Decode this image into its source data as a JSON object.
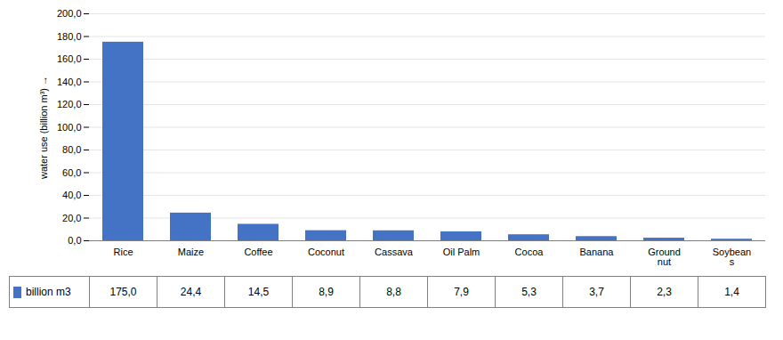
{
  "chart_data": {
    "type": "bar",
    "categories": [
      "Rice",
      "Maize",
      "Coffee",
      "Coconut",
      "Cassava",
      "Oil Palm",
      "Cocoa",
      "Banana",
      "Ground\nnut",
      "Soybean\ns"
    ],
    "series": [
      {
        "name": "billion m3",
        "color": "#4472C4",
        "values": [
          175.0,
          24.4,
          14.5,
          8.9,
          8.8,
          7.9,
          5.3,
          3.7,
          2.3,
          1.4
        ],
        "value_labels": [
          "175,0",
          "24,4",
          "14,5",
          "8,9",
          "8,8",
          "7,9",
          "5,3",
          "3,7",
          "2,3",
          "1,4"
        ]
      }
    ],
    "ylabel": "water use (billion m³)",
    "ylim": [
      0,
      200
    ],
    "yticks": [
      {
        "value": 0,
        "label": "0,0"
      },
      {
        "value": 20,
        "label": "20,0"
      },
      {
        "value": 40,
        "label": "40,0"
      },
      {
        "value": 60,
        "label": "60,0"
      },
      {
        "value": 80,
        "label": "80,0"
      },
      {
        "value": 100,
        "label": "100,0"
      },
      {
        "value": 120,
        "label": "120,0"
      },
      {
        "value": 140,
        "label": "140,0"
      },
      {
        "value": 160,
        "label": "160,0"
      },
      {
        "value": 180,
        "label": "180,0"
      },
      {
        "value": 200,
        "label": "200,0"
      }
    ],
    "grid": true,
    "data_labels": true
  }
}
